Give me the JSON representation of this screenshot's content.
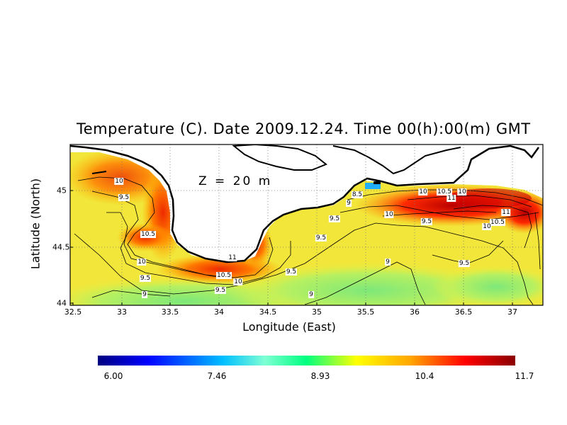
{
  "title": "Temperature (C). Date 2009.12.24. Time 00(h):00(m) GMT",
  "depth_label": "Z = 20 m",
  "axes": {
    "x_label": "Longitude (East)",
    "y_label": "Latitude (North)",
    "x_ticks": [
      "32.5",
      "33",
      "33.5",
      "34",
      "34.5",
      "35",
      "35.5",
      "36",
      "36.5",
      "37"
    ],
    "y_ticks": [
      "45",
      "44.5",
      "44"
    ]
  },
  "colorbar": {
    "ticks": [
      "6.00",
      "7.46",
      "8.93",
      "10.4",
      "11.7"
    ],
    "colors": [
      "#000080",
      "#0000ff",
      "#00bfff",
      "#7fffd4",
      "#00ff7f",
      "#ffff00",
      "#ffa500",
      "#ff0000",
      "#8b0000"
    ]
  },
  "contour_labels": [
    {
      "text": "10",
      "id": "c1"
    },
    {
      "text": "9.5",
      "id": "c2"
    },
    {
      "text": "10.5",
      "id": "c3"
    },
    {
      "text": "10",
      "id": "c4"
    },
    {
      "text": "9.5",
      "id": "c5"
    },
    {
      "text": "9",
      "id": "c6"
    },
    {
      "text": "11",
      "id": "c7"
    },
    {
      "text": "10.5",
      "id": "c8"
    },
    {
      "text": "10",
      "id": "c9"
    },
    {
      "text": "9.5",
      "id": "c10"
    },
    {
      "text": "9.5",
      "id": "c11"
    },
    {
      "text": "9.5",
      "id": "c12"
    },
    {
      "text": "9",
      "id": "c13"
    },
    {
      "text": "9",
      "id": "c14"
    },
    {
      "text": "8.5",
      "id": "c15"
    },
    {
      "text": "9",
      "id": "c16"
    },
    {
      "text": "9.5",
      "id": "c17"
    },
    {
      "text": "10",
      "id": "c18"
    },
    {
      "text": "10",
      "id": "c19"
    },
    {
      "text": "10.5",
      "id": "c20"
    },
    {
      "text": "10",
      "id": "c21"
    },
    {
      "text": "11",
      "id": "c22"
    },
    {
      "text": "9.5",
      "id": "c23"
    },
    {
      "text": "11",
      "id": "c24"
    },
    {
      "text": "10.5",
      "id": "c25"
    },
    {
      "text": "10",
      "id": "c26"
    },
    {
      "text": "9",
      "id": "c27"
    },
    {
      "text": "9.5",
      "id": "c28"
    }
  ],
  "chart_data": {
    "type": "heatmap",
    "variable": "Temperature (C)",
    "depth": "Z = 20 m",
    "xlim": [
      32.5,
      37.3
    ],
    "ylim": [
      44.0,
      45.35
    ],
    "color_range": [
      6.0,
      11.7
    ],
    "contour_levels": [
      8.5,
      9,
      9.5,
      10,
      10.5,
      11
    ],
    "grid": true
  }
}
